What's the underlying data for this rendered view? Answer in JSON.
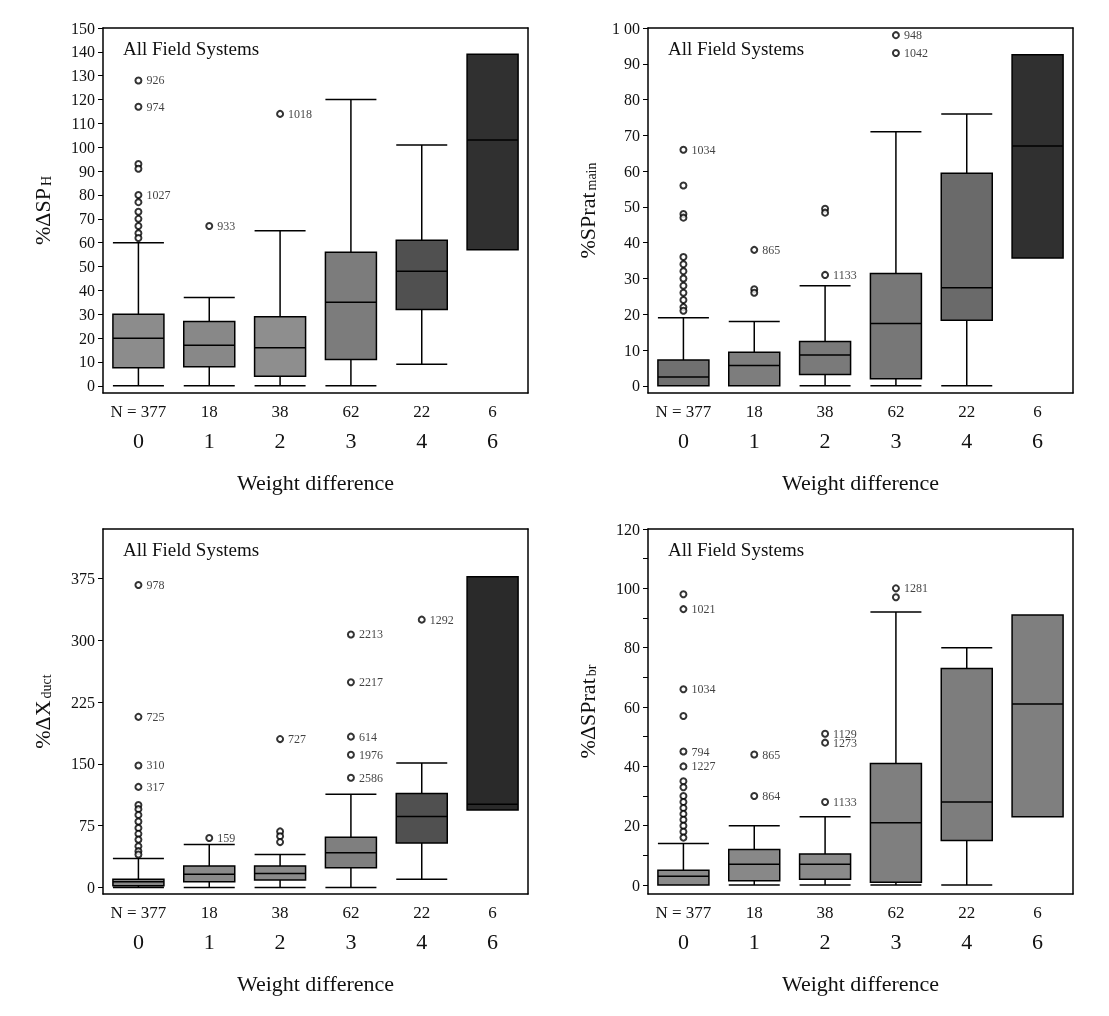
{
  "chart_data": [
    {
      "type": "box",
      "title": "All Field Systems",
      "xlabel": "Weight difference",
      "ylabel": "%ΔSP$_{H}$",
      "categories": [
        "0",
        "1",
        "2",
        "3",
        "4",
        "6"
      ],
      "colors": [
        "#8c8c8c",
        "#888888",
        "#8e8e8e",
        "#7c7c7c",
        "#505050",
        "#303030"
      ],
      "ylim": [
        -3,
        150
      ],
      "yticks": [
        0,
        10,
        20,
        30,
        40,
        50,
        60,
        70,
        80,
        90,
        100,
        110,
        120,
        130,
        140,
        150
      ],
      "boxes": [
        {
          "low": 0,
          "q1": 7.6,
          "median": 20,
          "q3": 30,
          "high": 60
        },
        {
          "low": 0,
          "q1": 8,
          "median": 17,
          "q3": 27,
          "high": 37
        },
        {
          "low": 0,
          "q1": 4,
          "median": 16,
          "q3": 29,
          "high": 65
        },
        {
          "low": 0,
          "q1": 11,
          "median": 35,
          "q3": 56,
          "high": 120
        },
        {
          "low": 9,
          "q1": 32,
          "median": 48,
          "q3": 61,
          "high": 101
        },
        {
          "low": 57,
          "q1": 57,
          "median": 103,
          "q3": 139,
          "high": 139
        }
      ],
      "series": [
        {
          "type": "scatter",
          "marker": "circle",
          "color": "#000000",
          "x": [
            "0",
            "0",
            "0",
            "0",
            "0",
            "0",
            "0",
            "0",
            "0",
            "0",
            "0",
            "1",
            "2"
          ],
          "values": [
            128,
            117,
            93,
            91,
            80,
            77,
            73,
            70,
            67,
            64,
            62,
            67,
            114
          ]
        }
      ],
      "annotations": [
        "N = 377",
        "18",
        "38",
        "62",
        "22",
        "6",
        {
          "text": "926",
          "x": "0",
          "y": 128
        },
        {
          "text": "974",
          "x": "0",
          "y": 117
        },
        {
          "text": "1027",
          "x": "0",
          "y": 80
        },
        {
          "text": "933",
          "x": "1",
          "y": 67
        },
        {
          "text": "1018",
          "x": "2",
          "y": 114
        }
      ]
    },
    {
      "type": "box",
      "title": "All Field Systems",
      "xlabel": "Weight difference",
      "ylabel": "%SPrat$_{main}$",
      "categories": [
        "0",
        "1",
        "2",
        "3",
        "4",
        "6"
      ],
      "colors": [
        "#707070",
        "#7d7d7d",
        "#7a7a7a",
        "#777777",
        "#6a6a6a",
        "#303030"
      ],
      "ylim": [
        -2,
        100
      ],
      "yticks": [
        0,
        10,
        20,
        30,
        40,
        50,
        60,
        70,
        80,
        90,
        {
          "value": 100,
          "label": "1 00"
        }
      ],
      "boxes": [
        {
          "low": 0,
          "q1": 0,
          "median": 2.5,
          "q3": 7.2,
          "high": 19
        },
        {
          "low": 0,
          "q1": 0,
          "median": 5.7,
          "q3": 9.4,
          "high": 18
        },
        {
          "low": 0,
          "q1": 3.2,
          "median": 8.6,
          "q3": 12.4,
          "high": 28
        },
        {
          "low": 0,
          "q1": 2,
          "median": 17.4,
          "q3": 31.4,
          "high": 71
        },
        {
          "low": 0,
          "q1": 18.3,
          "median": 27.4,
          "q3": 59.4,
          "high": 76
        },
        {
          "low": 35.7,
          "q1": 35.7,
          "median": 67,
          "q3": 92.5,
          "high": 92.5
        }
      ],
      "series": [
        {
          "type": "scatter",
          "marker": "circle",
          "color": "#000000",
          "x": [
            "0",
            "0",
            "0",
            "0",
            "0",
            "0",
            "0",
            "0",
            "0",
            "0",
            "0",
            "0",
            "0",
            "1",
            "1",
            "1",
            "2",
            "2",
            "2",
            "3",
            "3"
          ],
          "values": [
            66,
            56,
            48,
            47,
            36,
            34,
            32,
            30,
            28,
            26,
            24,
            22,
            21,
            38,
            27,
            26,
            49.5,
            48.4,
            31,
            98,
            93
          ]
        }
      ],
      "annotations": [
        "N = 377",
        "18",
        "38",
        "62",
        "22",
        "6",
        {
          "text": "1034",
          "x": "0",
          "y": 66
        },
        {
          "text": "865",
          "x": "1",
          "y": 38
        },
        {
          "text": "1133",
          "x": "2",
          "y": 31
        },
        {
          "text": "948",
          "x": "3",
          "y": 98
        },
        {
          "text": "1042",
          "x": "3",
          "y": 93
        }
      ]
    },
    {
      "type": "box",
      "title": "All Field Systems",
      "xlabel": "Weight difference",
      "ylabel": "%ΔX$_{duct}$",
      "categories": [
        "0",
        "1",
        "2",
        "3",
        "4",
        "6"
      ],
      "colors": [
        "#888888",
        "#8a8a8a",
        "#8a8a8a",
        "#7f7f7f",
        "#505050",
        "#2a2a2a"
      ],
      "ylim": [
        -8,
        435
      ],
      "yticks": [
        0,
        75,
        150,
        225,
        300,
        375
      ],
      "boxes": [
        {
          "low": 0,
          "q1": 2,
          "median": 7,
          "q3": 10,
          "high": 35
        },
        {
          "low": 0,
          "q1": 7,
          "median": 16,
          "q3": 26,
          "high": 52
        },
        {
          "low": 0,
          "q1": 9,
          "median": 17,
          "q3": 26,
          "high": 40
        },
        {
          "low": 0,
          "q1": 24,
          "median": 42,
          "q3": 61,
          "high": 113
        },
        {
          "low": 10,
          "q1": 54,
          "median": 86,
          "q3": 114,
          "high": 151
        },
        {
          "low": 94,
          "q1": 94,
          "median": 101,
          "q3": 377,
          "high": 377
        }
      ],
      "series": [
        {
          "type": "scatter",
          "marker": "circle",
          "color": "#000000",
          "x": [
            "0",
            "0",
            "0",
            "0",
            "0",
            "0",
            "0",
            "0",
            "0",
            "0",
            "0",
            "0",
            "0",
            "0",
            "1",
            "2",
            "2",
            "2",
            "2",
            "3",
            "3",
            "3",
            "3",
            "3",
            "4"
          ],
          "values": [
            367,
            207,
            148,
            122,
            100,
            95,
            88,
            80,
            72,
            65,
            58,
            50,
            44,
            40,
            60,
            180,
            68,
            62,
            55,
            307,
            249,
            183,
            161,
            133,
            325
          ]
        }
      ],
      "annotations": [
        "N = 377",
        "18",
        "38",
        "62",
        "22",
        "6",
        {
          "text": "978",
          "x": "0",
          "y": 367
        },
        {
          "text": "725",
          "x": "0",
          "y": 207
        },
        {
          "text": "310",
          "x": "0",
          "y": 148
        },
        {
          "text": "317",
          "x": "0",
          "y": 122
        },
        {
          "text": "159",
          "x": "1",
          "y": 60
        },
        {
          "text": "727",
          "x": "2",
          "y": 180
        },
        {
          "text": "2213",
          "x": "3",
          "y": 307
        },
        {
          "text": "2217",
          "x": "3",
          "y": 249
        },
        {
          "text": "614",
          "x": "3",
          "y": 183
        },
        {
          "text": "1976",
          "x": "3",
          "y": 161
        },
        {
          "text": "2586",
          "x": "3",
          "y": 133
        },
        {
          "text": "1292",
          "x": "4",
          "y": 325
        }
      ]
    },
    {
      "type": "box",
      "title": "All Field Systems",
      "xlabel": "Weight difference",
      "ylabel": "%ΔSPrat$_{br}$",
      "categories": [
        "0",
        "1",
        "2",
        "3",
        "4",
        "6"
      ],
      "colors": [
        "#8a8a8a",
        "#888888",
        "#8a8a8a",
        "#7f7f7f",
        "#7d7d7d",
        "#7f7f7f"
      ],
      "ylim": [
        -3,
        120
      ],
      "yticks": [
        0,
        {
          "value": 10,
          "label": null
        },
        20,
        {
          "value": 30,
          "label": null
        },
        40,
        {
          "value": 50,
          "label": null
        },
        60,
        {
          "value": 70,
          "label": null
        },
        80,
        {
          "value": 90,
          "label": null
        },
        100,
        {
          "value": 110,
          "label": null
        },
        120
      ],
      "boxes": [
        {
          "low": 0,
          "q1": 0,
          "median": 3,
          "q3": 5,
          "high": 14
        },
        {
          "low": 0,
          "q1": 1.5,
          "median": 7,
          "q3": 12,
          "high": 20
        },
        {
          "low": 0,
          "q1": 2,
          "median": 7,
          "q3": 10.5,
          "high": 23
        },
        {
          "low": 0,
          "q1": 1,
          "median": 21,
          "q3": 41,
          "high": 92
        },
        {
          "low": 0,
          "q1": 15,
          "median": 28,
          "q3": 73,
          "high": 80
        },
        {
          "low": 23,
          "q1": 23,
          "median": 61,
          "q3": 91,
          "high": 91
        }
      ],
      "series": [
        {
          "type": "scatter",
          "marker": "circle",
          "color": "#000000",
          "x": [
            "0",
            "0",
            "0",
            "0",
            "0",
            "0",
            "0",
            "0",
            "0",
            "0",
            "0",
            "0",
            "0",
            "0",
            "0",
            "0",
            "1",
            "1",
            "2",
            "2",
            "2",
            "3",
            "3"
          ],
          "values": [
            98,
            93,
            66,
            57,
            45,
            40,
            35,
            33,
            30,
            28,
            26,
            24,
            22,
            20,
            18,
            16,
            44,
            30,
            51,
            48,
            28,
            100,
            97
          ]
        }
      ],
      "annotations": [
        "N = 377",
        "18",
        "38",
        "62",
        "22",
        "6",
        {
          "text": "1021",
          "x": "0",
          "y": 93
        },
        {
          "text": "1034",
          "x": "0",
          "y": 66
        },
        {
          "text": "794",
          "x": "0",
          "y": 45
        },
        {
          "text": "1227",
          "x": "0",
          "y": 40
        },
        {
          "text": "865",
          "x": "1",
          "y": 44
        },
        {
          "text": "864",
          "x": "1",
          "y": 30
        },
        {
          "text": "1129",
          "x": "2",
          "y": 51
        },
        {
          "text": "1273",
          "x": "2",
          "y": 48
        },
        {
          "text": "1133",
          "x": "2",
          "y": 28
        },
        {
          "text": "1281",
          "x": "3",
          "y": 100
        }
      ]
    }
  ]
}
